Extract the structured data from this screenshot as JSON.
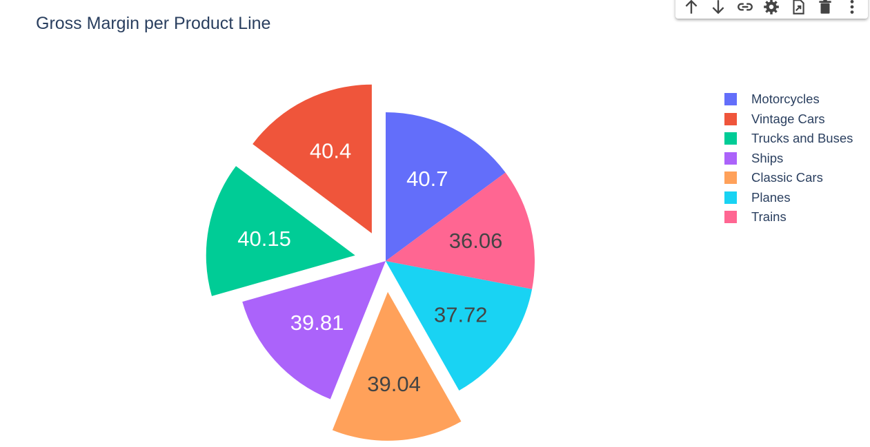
{
  "toolbar": {
    "icons": [
      "arrow-up-icon",
      "arrow-down-icon",
      "link-icon",
      "gear-icon",
      "export-icon",
      "trash-icon",
      "more-vert-icon"
    ]
  },
  "chart_data": {
    "type": "pie",
    "title": "Gross Margin per Product Line",
    "legend_position": "right",
    "text_info": "value",
    "direction": "clockwise",
    "sort": "descending",
    "slices": [
      {
        "label": "Motorcycles",
        "value": 40.7,
        "color": "#636efa",
        "pulled": false
      },
      {
        "label": "Trains",
        "value": 36.06,
        "color": "#ff6692",
        "pulled": false
      },
      {
        "label": "Planes",
        "value": 37.72,
        "color": "#19d3f3",
        "pulled": false
      },
      {
        "label": "Classic Cars",
        "value": 39.04,
        "color": "#ffa15a",
        "pulled": true
      },
      {
        "label": "Ships",
        "value": 39.81,
        "color": "#ab63fa",
        "pulled": false
      },
      {
        "label": "Trucks and Buses",
        "value": 40.15,
        "color": "#00cc96",
        "pulled": true
      },
      {
        "label": "Vintage Cars",
        "value": 40.4,
        "color": "#ef553b",
        "pulled": true
      }
    ],
    "legend": [
      "Motorcycles",
      "Vintage Cars",
      "Trucks and Buses",
      "Ships",
      "Classic Cars",
      "Planes",
      "Trains"
    ]
  }
}
